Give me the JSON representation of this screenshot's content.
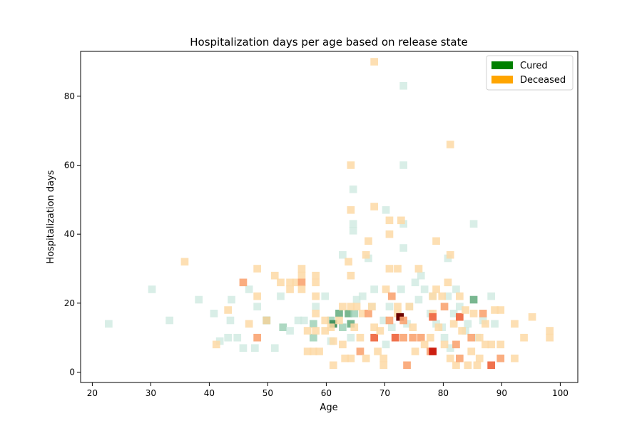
{
  "chart_data": {
    "type": "heatmap",
    "title": "Hospitalization days per age based on release state",
    "xlabel": "Age",
    "ylabel": "Hospitalization days",
    "xlim": [
      18,
      103
    ],
    "ylim": [
      -3,
      93
    ],
    "xticks": [
      20,
      30,
      40,
      50,
      60,
      70,
      80,
      90,
      100
    ],
    "yticks": [
      0,
      20,
      40,
      60,
      80
    ],
    "legend_position": "top-right",
    "grid": false,
    "bin_width_age": 1.3,
    "bin_height_days": 2.2,
    "legend": [
      {
        "label": "Cured",
        "color": "#008000"
      },
      {
        "label": "Deceased",
        "color": "#ffa500"
      }
    ],
    "series": [
      {
        "name": "Cured",
        "cells": [
          [
            22.8,
            14,
            1
          ],
          [
            30.2,
            24,
            1
          ],
          [
            33.2,
            15,
            1
          ],
          [
            38.2,
            21,
            1
          ],
          [
            40.8,
            17,
            1
          ],
          [
            41.8,
            9,
            1
          ],
          [
            43.2,
            10,
            1
          ],
          [
            43.8,
            21,
            1
          ],
          [
            43.6,
            15,
            1
          ],
          [
            44.8,
            10,
            1
          ],
          [
            45.8,
            7,
            1
          ],
          [
            46.8,
            24,
            1
          ],
          [
            47.8,
            7,
            1
          ],
          [
            48.2,
            19,
            1
          ],
          [
            49.8,
            15,
            3
          ],
          [
            51.2,
            7,
            1
          ],
          [
            52.2,
            22,
            1
          ],
          [
            52.6,
            13,
            2
          ],
          [
            53.8,
            12,
            1
          ],
          [
            55.2,
            15,
            1
          ],
          [
            56.2,
            15,
            1
          ],
          [
            57.8,
            14,
            2
          ],
          [
            57.8,
            10,
            2
          ],
          [
            58.2,
            19,
            1
          ],
          [
            59.8,
            22,
            1
          ],
          [
            60.8,
            9,
            1
          ],
          [
            60.8,
            15,
            2
          ],
          [
            61.2,
            14,
            4
          ],
          [
            62.2,
            17,
            3
          ],
          [
            62.8,
            34,
            1
          ],
          [
            62.8,
            13,
            2
          ],
          [
            63.8,
            17,
            3
          ],
          [
            64.2,
            14,
            3
          ],
          [
            64.2,
            10,
            1
          ],
          [
            64.6,
            43,
            1
          ],
          [
            64.6,
            41,
            1
          ],
          [
            64.6,
            53,
            1
          ],
          [
            64.8,
            17,
            2
          ],
          [
            65.2,
            21,
            1
          ],
          [
            66.2,
            22,
            1
          ],
          [
            67.2,
            33,
            1
          ],
          [
            67.8,
            19,
            1
          ],
          [
            68.2,
            24,
            1
          ],
          [
            69.8,
            15,
            1
          ],
          [
            70.2,
            47,
            1
          ],
          [
            70.8,
            19,
            1
          ],
          [
            70.2,
            8,
            1
          ],
          [
            71.2,
            13,
            1
          ],
          [
            72.8,
            24,
            1
          ],
          [
            73.2,
            43,
            1
          ],
          [
            73.2,
            36,
            1
          ],
          [
            73.2,
            60,
            1
          ],
          [
            73.2,
            83,
            1
          ],
          [
            73.8,
            14,
            1
          ],
          [
            74.2,
            19,
            1
          ],
          [
            75.2,
            26,
            1
          ],
          [
            75.8,
            21,
            1
          ],
          [
            76.2,
            28,
            1
          ],
          [
            76.8,
            24,
            1
          ],
          [
            77.8,
            17,
            1
          ],
          [
            78.2,
            22,
            1
          ],
          [
            78.8,
            14,
            1
          ],
          [
            79.8,
            13,
            1
          ],
          [
            80.2,
            10,
            1
          ],
          [
            80.8,
            33,
            1
          ],
          [
            80.8,
            22,
            1
          ],
          [
            81.2,
            7,
            1
          ],
          [
            81.8,
            17,
            1
          ],
          [
            82.2,
            24,
            1
          ],
          [
            82.8,
            19,
            1
          ],
          [
            83.8,
            12,
            1
          ],
          [
            84.2,
            14,
            1
          ],
          [
            85.2,
            21,
            3
          ],
          [
            85.2,
            43,
            1
          ],
          [
            85.8,
            10,
            1
          ],
          [
            86.8,
            15,
            1
          ],
          [
            88.2,
            22,
            1
          ],
          [
            88.8,
            14,
            1
          ]
        ]
      },
      {
        "name": "Deceased",
        "cells": [
          [
            35.8,
            32,
            1
          ],
          [
            41.2,
            8,
            1
          ],
          [
            43.2,
            18,
            1
          ],
          [
            45.8,
            26,
            2
          ],
          [
            46.8,
            14,
            1
          ],
          [
            48.2,
            30,
            1
          ],
          [
            48.2,
            22,
            1
          ],
          [
            48.2,
            10,
            2
          ],
          [
            49.8,
            15,
            1
          ],
          [
            51.2,
            28,
            1
          ],
          [
            52.2,
            26,
            1
          ],
          [
            53.8,
            24,
            1
          ],
          [
            53.8,
            26,
            1
          ],
          [
            54.8,
            26,
            1
          ],
          [
            55.8,
            30,
            1
          ],
          [
            55.8,
            28,
            1
          ],
          [
            55.8,
            26,
            2
          ],
          [
            55.8,
            24,
            1
          ],
          [
            56.8,
            12,
            1
          ],
          [
            56.8,
            6,
            1
          ],
          [
            57.8,
            6,
            1
          ],
          [
            58.2,
            17,
            1
          ],
          [
            58.2,
            26,
            1
          ],
          [
            58.2,
            28,
            1
          ],
          [
            58.2,
            22,
            1
          ],
          [
            58.8,
            6,
            1
          ],
          [
            58.2,
            12,
            1
          ],
          [
            59.8,
            15,
            1
          ],
          [
            59.8,
            12,
            1
          ],
          [
            60.8,
            13,
            1
          ],
          [
            61.2,
            9,
            1
          ],
          [
            61.2,
            2,
            1
          ],
          [
            62.2,
            15,
            1
          ],
          [
            62.8,
            8,
            1
          ],
          [
            62.8,
            19,
            1
          ],
          [
            63.2,
            4,
            1
          ],
          [
            63.8,
            32,
            1
          ],
          [
            64.2,
            19,
            1
          ],
          [
            64.2,
            28,
            1
          ],
          [
            64.2,
            60,
            1
          ],
          [
            64.2,
            47,
            1
          ],
          [
            64.8,
            13,
            1
          ],
          [
            65.2,
            19,
            1
          ],
          [
            64.2,
            4,
            1
          ],
          [
            65.8,
            10,
            1
          ],
          [
            65.8,
            6,
            2
          ],
          [
            66.2,
            17,
            1
          ],
          [
            66.8,
            4,
            1
          ],
          [
            66.8,
            34,
            1
          ],
          [
            67.2,
            38,
            1
          ],
          [
            67.2,
            17,
            2
          ],
          [
            67.8,
            19,
            1
          ],
          [
            68.2,
            48,
            1
          ],
          [
            68.2,
            13,
            1
          ],
          [
            68.2,
            10,
            3
          ],
          [
            68.2,
            90,
            1
          ],
          [
            68.8,
            6,
            1
          ],
          [
            69.2,
            12,
            1
          ],
          [
            69.8,
            4,
            1
          ],
          [
            69.8,
            2,
            1
          ],
          [
            70.2,
            24,
            1
          ],
          [
            70.8,
            40,
            1
          ],
          [
            70.8,
            44,
            1
          ],
          [
            70.8,
            30,
            1
          ],
          [
            70.8,
            15,
            2
          ],
          [
            71.2,
            22,
            2
          ],
          [
            71.8,
            10,
            3
          ],
          [
            72.2,
            19,
            1
          ],
          [
            72.2,
            17,
            1
          ],
          [
            72.2,
            30,
            1
          ],
          [
            72.6,
            16,
            5
          ],
          [
            72.8,
            44,
            1
          ],
          [
            73.2,
            15,
            2
          ],
          [
            73.2,
            10,
            2
          ],
          [
            73.8,
            2,
            2
          ],
          [
            74.2,
            19,
            1
          ],
          [
            74.8,
            13,
            1
          ],
          [
            74.8,
            10,
            2
          ],
          [
            75.2,
            6,
            1
          ],
          [
            75.8,
            30,
            1
          ],
          [
            76.2,
            10,
            2
          ],
          [
            76.8,
            8,
            1
          ],
          [
            77.8,
            6,
            2
          ],
          [
            77.8,
            10,
            1
          ],
          [
            78.2,
            22,
            1
          ],
          [
            78.2,
            17,
            1
          ],
          [
            78.2,
            16,
            3
          ],
          [
            78.2,
            6,
            4
          ],
          [
            78.8,
            38,
            1
          ],
          [
            78.8,
            24,
            1
          ],
          [
            79.2,
            13,
            1
          ],
          [
            79.8,
            22,
            1
          ],
          [
            80.2,
            19,
            2
          ],
          [
            80.2,
            8,
            1
          ],
          [
            80.8,
            26,
            1
          ],
          [
            81.2,
            66,
            1
          ],
          [
            81.2,
            34,
            1
          ],
          [
            81.2,
            4,
            1
          ],
          [
            81.8,
            14,
            1
          ],
          [
            82.2,
            8,
            2
          ],
          [
            82.2,
            2,
            1
          ],
          [
            82.8,
            22,
            1
          ],
          [
            82.8,
            16,
            3
          ],
          [
            82.8,
            4,
            2
          ],
          [
            83.2,
            12,
            1
          ],
          [
            83.8,
            18,
            1
          ],
          [
            84.2,
            2,
            1
          ],
          [
            84.8,
            10,
            2
          ],
          [
            84.8,
            6,
            1
          ],
          [
            85.2,
            17,
            1
          ],
          [
            85.8,
            2,
            1
          ],
          [
            86.2,
            10,
            1
          ],
          [
            86.2,
            4,
            1
          ],
          [
            86.8,
            17,
            2
          ],
          [
            87.2,
            8,
            1
          ],
          [
            87.2,
            14,
            1
          ],
          [
            88.2,
            2,
            3
          ],
          [
            88.2,
            8,
            1
          ],
          [
            88.8,
            18,
            1
          ],
          [
            89.8,
            4,
            2
          ],
          [
            89.8,
            18,
            1
          ],
          [
            89.8,
            8,
            1
          ],
          [
            92.2,
            4,
            1
          ],
          [
            92.2,
            14,
            1
          ],
          [
            93.8,
            10,
            1
          ],
          [
            95.2,
            16,
            1
          ],
          [
            98.2,
            12,
            1
          ],
          [
            98.2,
            10,
            1
          ]
        ]
      }
    ]
  }
}
